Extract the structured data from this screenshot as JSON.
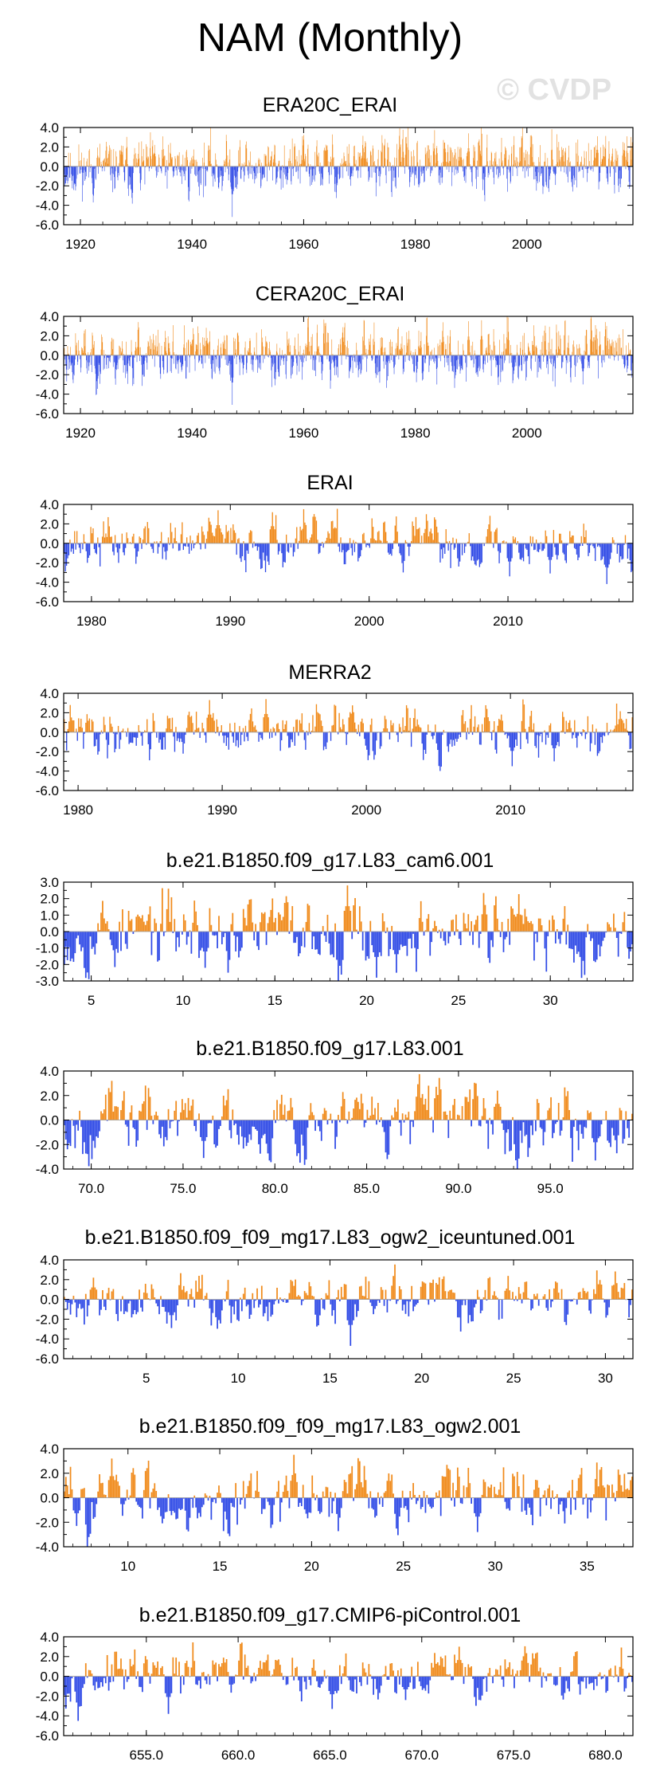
{
  "title": "NAM (Monthly)",
  "watermark": "© CVDP",
  "colors": {
    "positive": "#f08a1a",
    "negative": "#2f4ae6",
    "frame": "#000000",
    "zero_line": "#999999"
  },
  "chart_data": [
    {
      "type": "bar",
      "title": "ERA20C_ERAI",
      "x_range": [
        1917,
        2019
      ],
      "ylim": [
        -6,
        4
      ],
      "yticks": [
        4,
        2,
        0,
        -2,
        -4,
        -6
      ],
      "ytick_labels": [
        "4.0",
        "2.0",
        "0.0",
        "-2.0",
        "-4.0",
        "-6.0"
      ],
      "xticks": [
        1920,
        1940,
        1960,
        1980,
        2000
      ],
      "xtick_labels": [
        "1920",
        "1940",
        "1960",
        "1980",
        "2000"
      ],
      "series_seed": 11,
      "pos_scale": 1.3,
      "neg_scale": 1.2,
      "trend": 0.6,
      "peaks": [
        [
          1947.2,
          -5.2
        ],
        [
          1989.5,
          3.4
        ],
        [
          2012.6,
          3.1
        ]
      ]
    },
    {
      "type": "bar",
      "title": "CERA20C_ERAI",
      "x_range": [
        1917,
        2019
      ],
      "ylim": [
        -6,
        4
      ],
      "yticks": [
        4,
        2,
        0,
        -2,
        -4,
        -6
      ],
      "ytick_labels": [
        "4.0",
        "2.0",
        "0.0",
        "-2.0",
        "-4.0",
        "-6.0"
      ],
      "xticks": [
        1920,
        1940,
        1960,
        1980,
        2000
      ],
      "xtick_labels": [
        "1920",
        "1940",
        "1960",
        "1980",
        "2000"
      ],
      "series_seed": 23,
      "pos_scale": 1.3,
      "neg_scale": 1.2,
      "trend": 0.3,
      "peaks": [
        [
          1947.2,
          -5.1
        ],
        [
          1989.5,
          3.5
        ],
        [
          1991.8,
          3.6
        ],
        [
          2010.0,
          -3.0
        ]
      ]
    },
    {
      "type": "bar",
      "title": "ERAI",
      "x_range": [
        1978,
        2019
      ],
      "ylim": [
        -6,
        4
      ],
      "yticks": [
        4,
        2,
        0,
        -2,
        -4,
        -6
      ],
      "ytick_labels": [
        "4.0",
        "2.0",
        "0.0",
        "-2.0",
        "-4.0",
        "-6.0"
      ],
      "xticks": [
        1980,
        1990,
        2000,
        2010
      ],
      "xtick_labels": [
        "1980",
        "1990",
        "2000",
        "2010"
      ],
      "series_seed": 37,
      "pos_scale": 1.1,
      "neg_scale": 1.1,
      "trend": 0,
      "peaks": [
        [
          1989.1,
          3.4
        ],
        [
          1993.0,
          3.2
        ],
        [
          2010.1,
          -3.4
        ],
        [
          2013.0,
          -3.1
        ]
      ]
    },
    {
      "type": "bar",
      "title": "MERRA2",
      "x_range": [
        1979,
        2018.5
      ],
      "ylim": [
        -6,
        4
      ],
      "yticks": [
        4,
        2,
        0,
        -2,
        -4,
        -6
      ],
      "ytick_labels": [
        "4.0",
        "2.0",
        "0.0",
        "-2.0",
        "-4.0",
        "-6.0"
      ],
      "xticks": [
        1980,
        1990,
        2000,
        2010
      ],
      "xtick_labels": [
        "1980",
        "1990",
        "2000",
        "2010"
      ],
      "series_seed": 41,
      "pos_scale": 1.1,
      "neg_scale": 1.1,
      "trend": 0,
      "peaks": [
        [
          1989.1,
          3.3
        ],
        [
          1993.0,
          3.4
        ],
        [
          2010.1,
          -3.5
        ],
        [
          2013.0,
          -3.0
        ]
      ]
    },
    {
      "type": "bar",
      "title": "b.e21.B1850.f09_g17.L83_cam6.001",
      "x_range": [
        3.5,
        34.5
      ],
      "ylim": [
        -3,
        3
      ],
      "yticks": [
        3,
        2,
        1,
        0,
        -1,
        -2,
        -3
      ],
      "ytick_labels": [
        "3.0",
        "2.0",
        "1.0",
        "0.0",
        "-1.0",
        "-2.0",
        "-3.0"
      ],
      "xticks": [
        5,
        10,
        15,
        20,
        25,
        30
      ],
      "xtick_labels": [
        "5",
        "10",
        "15",
        "20",
        "25",
        "30"
      ],
      "series_seed": 53,
      "pos_scale": 1.0,
      "neg_scale": 1.0,
      "trend": 0,
      "peaks": [
        [
          18.9,
          2.8
        ],
        [
          21.6,
          -2.5
        ],
        [
          11.2,
          -2.2
        ],
        [
          20.5,
          -2.8
        ]
      ]
    },
    {
      "type": "bar",
      "title": "b.e21.B1850.f09_g17.L83.001",
      "x_range": [
        68.5,
        99.5
      ],
      "ylim": [
        -4,
        4
      ],
      "yticks": [
        4,
        2,
        0,
        -2,
        -4
      ],
      "ytick_labels": [
        "4.0",
        "2.0",
        "0.0",
        "-2.0",
        "-4.0"
      ],
      "xticks": [
        70,
        75,
        80,
        85,
        90,
        95
      ],
      "xtick_labels": [
        "70.0",
        "75.0",
        "80.0",
        "85.0",
        "90.0",
        "95.0"
      ],
      "series_seed": 67,
      "pos_scale": 1.2,
      "neg_scale": 1.2,
      "trend": 0,
      "peaks": [
        [
          76.1,
          -3.1
        ],
        [
          97.4,
          -3.3
        ],
        [
          92.1,
          2.4
        ]
      ]
    },
    {
      "type": "bar",
      "title": "b.e21.B1850.f09_f09_mg17.L83_ogw2_iceuntuned.001",
      "x_range": [
        0.5,
        31.5
      ],
      "ylim": [
        -6,
        4
      ],
      "yticks": [
        4,
        2,
        0,
        -2,
        -4,
        -6
      ],
      "ytick_labels": [
        "4.0",
        "2.0",
        "0.0",
        "-2.0",
        "-4.0",
        "-6.0"
      ],
      "xticks": [
        5,
        10,
        15,
        20,
        25,
        30
      ],
      "xtick_labels": [
        "5",
        "10",
        "15",
        "20",
        "25",
        "30"
      ],
      "series_seed": 79,
      "pos_scale": 1.1,
      "neg_scale": 1.2,
      "trend": 0,
      "peaks": [
        [
          16.1,
          -4.7
        ],
        [
          2.1,
          2.2
        ],
        [
          6.3,
          -2.9
        ]
      ]
    },
    {
      "type": "bar",
      "title": "b.e21.B1850.f09_f09_mg17.L83_ogw2.001",
      "x_range": [
        6.5,
        37.5
      ],
      "ylim": [
        -4,
        4
      ],
      "yticks": [
        4,
        2,
        0,
        -2,
        -4
      ],
      "ytick_labels": [
        "4.0",
        "2.0",
        "0.0",
        "-2.0",
        "-4.0"
      ],
      "xticks": [
        10,
        15,
        20,
        25,
        30,
        35
      ],
      "xtick_labels": [
        "10",
        "15",
        "20",
        "25",
        "30",
        "35"
      ],
      "series_seed": 83,
      "pos_scale": 1.2,
      "neg_scale": 1.1,
      "trend": 0,
      "peaks": [
        [
          9.1,
          3.2
        ],
        [
          29.0,
          -2.8
        ],
        [
          7.2,
          -2.3
        ]
      ]
    },
    {
      "type": "bar",
      "title": "b.e21.B1850.f09_g17.CMIP6-piControl.001",
      "x_range": [
        650.5,
        681.5
      ],
      "ylim": [
        -6,
        4
      ],
      "yticks": [
        4,
        2,
        0,
        -2,
        -4,
        -6
      ],
      "ytick_labels": [
        "4.0",
        "2.0",
        "0.0",
        "-2.0",
        "-4.0",
        "-6.0"
      ],
      "xticks": [
        655,
        660,
        665,
        670,
        675,
        680
      ],
      "xtick_labels": [
        "655.0",
        "660.0",
        "665.0",
        "670.0",
        "675.0",
        "680.0"
      ],
      "series_seed": 97,
      "pos_scale": 1.1,
      "neg_scale": 1.1,
      "trend": 0,
      "peaks": [
        [
          656.2,
          -3.8
        ],
        [
          665.1,
          -3.3
        ],
        [
          672.0,
          3.0
        ],
        [
          669.1,
          -2.4
        ]
      ]
    }
  ]
}
